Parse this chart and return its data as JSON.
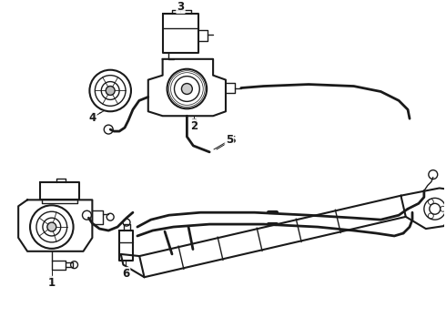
{
  "background_color": "#ffffff",
  "line_color": "#1a1a1a",
  "label_color": "#000000",
  "fig_width": 4.9,
  "fig_height": 3.6,
  "dpi": 100
}
